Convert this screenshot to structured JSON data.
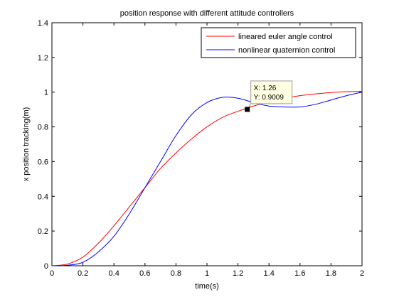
{
  "chart_data": {
    "type": "line",
    "title": "position response with different attitude controllers",
    "xlabel": "time(s)",
    "ylabel": "x position tracking(m)",
    "xlim": [
      0,
      2
    ],
    "ylim": [
      0,
      1.4
    ],
    "xticks": [
      "0",
      "0.2",
      "0.4",
      "0.6",
      "0.8",
      "1",
      "1.2",
      "1.4",
      "1.6",
      "1.8",
      "2"
    ],
    "yticks": [
      "0",
      "0.2",
      "0.4",
      "0.6",
      "0.8",
      "1",
      "1.2",
      "1.4"
    ],
    "grid": false,
    "legend_position": "top-right",
    "series": [
      {
        "name": "lineared euler angle control",
        "color": "#ff0000",
        "x": [
          0,
          0.1,
          0.2,
          0.3,
          0.4,
          0.5,
          0.6,
          0.7,
          0.8,
          0.9,
          1.0,
          1.1,
          1.2,
          1.3,
          1.4,
          1.5,
          1.6,
          1.7,
          1.8,
          1.9,
          2.0
        ],
        "y": [
          0,
          0.01,
          0.05,
          0.13,
          0.23,
          0.34,
          0.45,
          0.56,
          0.65,
          0.73,
          0.8,
          0.855,
          0.89,
          0.92,
          0.945,
          0.965,
          0.98,
          0.99,
          0.998,
          1.003,
          1.005
        ]
      },
      {
        "name": "nonlinear quaternion control",
        "color": "#0000ff",
        "x": [
          0,
          0.1,
          0.2,
          0.3,
          0.4,
          0.5,
          0.6,
          0.7,
          0.8,
          0.9,
          1.0,
          1.1,
          1.2,
          1.3,
          1.4,
          1.5,
          1.6,
          1.7,
          1.8,
          1.9,
          2.0
        ],
        "y": [
          0,
          0.003,
          0.02,
          0.08,
          0.17,
          0.3,
          0.45,
          0.6,
          0.75,
          0.87,
          0.94,
          0.97,
          0.965,
          0.94,
          0.92,
          0.915,
          0.915,
          0.93,
          0.955,
          0.98,
          1.0
        ]
      }
    ],
    "datatip": {
      "x": 1.26,
      "y": 0.9009,
      "xlabel": "X: 1.26",
      "ylabel": "Y: 0.9009"
    }
  }
}
